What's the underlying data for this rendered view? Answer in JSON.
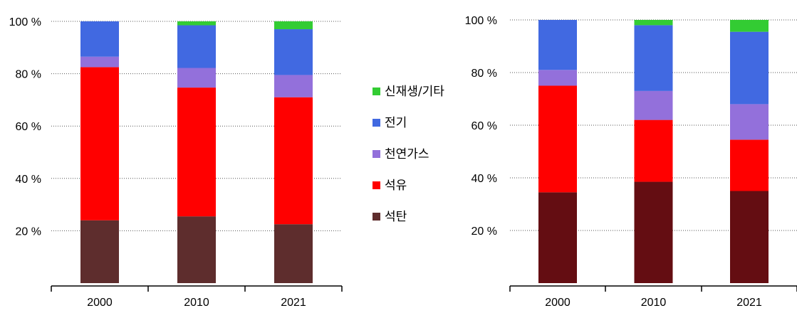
{
  "chart_data": [
    {
      "type": "bar",
      "stacked": true,
      "categories": [
        "2000",
        "2010",
        "2021"
      ],
      "y_ticks": [
        "20 %",
        "40 %",
        "60 %",
        "80 %",
        "100 %"
      ],
      "ylim": [
        0,
        100
      ],
      "grid": "horizontal dotted",
      "series": [
        {
          "name": "석탄",
          "color": "#5e2d2d",
          "values": [
            24,
            25.5,
            22.5
          ]
        },
        {
          "name": "석유",
          "color": "#ff0000",
          "values": [
            58.5,
            49.2,
            48.5
          ]
        },
        {
          "name": "천연가스",
          "color": "#9370db",
          "values": [
            4,
            7.5,
            8.5
          ]
        },
        {
          "name": "전기",
          "color": "#4169e1",
          "values": [
            13.5,
            16.3,
            17.5
          ]
        },
        {
          "name": "신재생/기타",
          "color": "#33cc33",
          "values": [
            0,
            1.5,
            3
          ]
        }
      ]
    },
    {
      "type": "bar",
      "stacked": true,
      "categories": [
        "2000",
        "2010",
        "2021"
      ],
      "y_ticks": [
        "20 %",
        "40 %",
        "60 %",
        "80 %",
        "100 %"
      ],
      "ylim": [
        0,
        100
      ],
      "grid": "horizontal dotted",
      "series": [
        {
          "name": "석탄",
          "color": "#640d12",
          "values": [
            34.5,
            38.5,
            35
          ]
        },
        {
          "name": "석유",
          "color": "#ff0000",
          "values": [
            40.5,
            23.5,
            19.5
          ]
        },
        {
          "name": "천연가스",
          "color": "#9370db",
          "values": [
            6,
            11,
            13.5
          ]
        },
        {
          "name": "전기",
          "color": "#4169e1",
          "values": [
            19,
            25,
            27.5
          ]
        },
        {
          "name": "신재생/기타",
          "color": "#33cc33",
          "values": [
            0,
            2,
            4.5
          ]
        }
      ]
    }
  ],
  "legend": {
    "position": "center",
    "items": [
      {
        "label": "신재생/기타",
        "color": "#33cc33"
      },
      {
        "label": "전기",
        "color": "#4169e1"
      },
      {
        "label": "천연가스",
        "color": "#9370db"
      },
      {
        "label": "석유",
        "color": "#ff0000"
      },
      {
        "label": "석탄",
        "color": "#5e2d2d"
      }
    ]
  }
}
